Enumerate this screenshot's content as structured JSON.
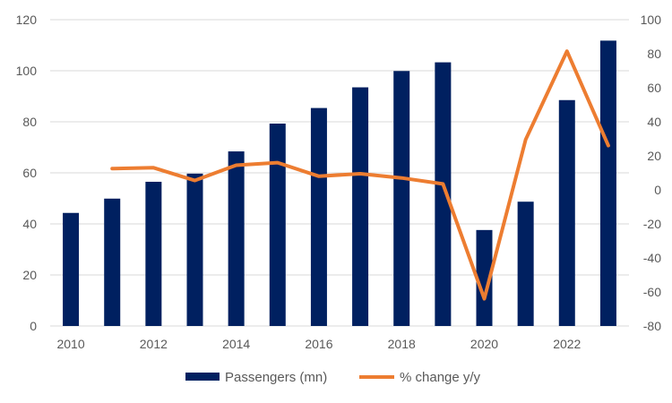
{
  "chart_data": {
    "type": "bar+line",
    "title": "",
    "xlabel": "",
    "ylabel": "",
    "categories": [
      "2010",
      "2011",
      "2012",
      "2013",
      "2014",
      "2015",
      "2016",
      "2017",
      "2018",
      "2019",
      "2020",
      "2021",
      "2022",
      "2023"
    ],
    "x_tick_labels": [
      "2010",
      "2012",
      "2014",
      "2016",
      "2018",
      "2020",
      "2022"
    ],
    "left_axis": {
      "ylim": [
        0,
        120
      ],
      "ticks": [
        "0",
        "20",
        "40",
        "60",
        "80",
        "100",
        "120"
      ]
    },
    "right_axis": {
      "ylim": [
        -80,
        100
      ],
      "ticks": [
        "-80",
        "-60",
        "-40",
        "-20",
        "0",
        "20",
        "40",
        "60",
        "80",
        "100"
      ]
    },
    "grid": "horizontal",
    "legend_position": "bottom",
    "series": [
      {
        "name": "Passengers (mn)",
        "type": "bar",
        "axis": "left",
        "color": "#002060",
        "values": [
          44.3,
          49.9,
          56.5,
          59.7,
          68.4,
          79.3,
          85.4,
          93.5,
          99.9,
          103.3,
          37.6,
          48.7,
          88.5,
          111.8
        ]
      },
      {
        "name": "% change y/y",
        "type": "line",
        "axis": "right",
        "color": "#ED7D31",
        "values": [
          null,
          12.5,
          13.0,
          5.5,
          14.5,
          16.0,
          8.0,
          9.5,
          7.0,
          3.5,
          -64.0,
          29.5,
          81.5,
          26.0
        ]
      }
    ]
  }
}
